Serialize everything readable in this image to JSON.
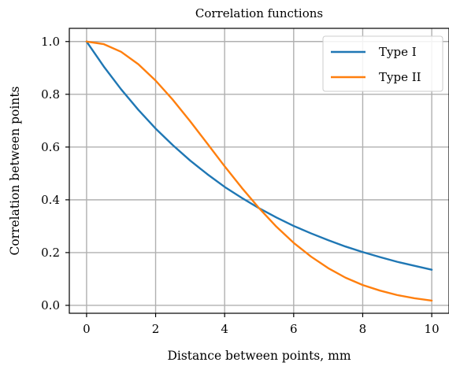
{
  "chart_data": {
    "type": "line",
    "title": "Correlation functions",
    "xlabel": "Distance between points, mm",
    "ylabel": "Correlation between points",
    "xlim": [
      -0.5,
      10.5
    ],
    "ylim": [
      -0.03,
      1.05
    ],
    "xticks": [
      0,
      2,
      4,
      6,
      8,
      10
    ],
    "yticks": [
      0.0,
      0.2,
      0.4,
      0.6,
      0.8,
      1.0
    ],
    "xtick_labels": [
      "0",
      "2",
      "4",
      "6",
      "8",
      "10"
    ],
    "ytick_labels": [
      "0.0",
      "0.2",
      "0.4",
      "0.6",
      "0.8",
      "1.0"
    ],
    "grid": true,
    "legend_position": "top-right",
    "x": [
      0,
      0.5,
      1,
      1.5,
      2,
      2.5,
      3,
      3.5,
      4,
      4.5,
      5,
      5.5,
      6,
      6.5,
      7,
      7.5,
      8,
      8.5,
      9,
      9.5,
      10
    ],
    "series": [
      {
        "name": "Type I",
        "color": "#1f77b4",
        "values": [
          1.0,
          0.905,
          0.819,
          0.741,
          0.67,
          0.607,
          0.549,
          0.497,
          0.449,
          0.407,
          0.368,
          0.333,
          0.301,
          0.273,
          0.247,
          0.223,
          0.202,
          0.183,
          0.165,
          0.15,
          0.135
        ]
      },
      {
        "name": "Type II",
        "color": "#ff7f0e",
        "values": [
          1.0,
          0.99,
          0.961,
          0.914,
          0.852,
          0.779,
          0.698,
          0.613,
          0.527,
          0.445,
          0.368,
          0.298,
          0.237,
          0.185,
          0.141,
          0.105,
          0.077,
          0.056,
          0.039,
          0.027,
          0.018
        ]
      }
    ]
  }
}
